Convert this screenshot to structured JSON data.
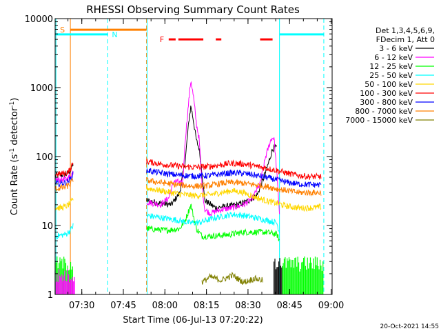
{
  "chart_data": {
    "type": "line",
    "title": "RHESSI Observing Summary Count Rates",
    "xlabel": "Start Time (06-Jul-13 07:20:22)",
    "ylabel_main": "Count Rate (s",
    "ylabel_sup1": "-1",
    "ylabel_mid": " detector",
    "ylabel_sup2": "-1",
    "ylabel_end": ")",
    "yscale": "log",
    "ylim": [
      1,
      10000
    ],
    "xlim_min": [
      0,
      100
    ],
    "y_ticks": [
      {
        "v": 1,
        "label": "1"
      },
      {
        "v": 10,
        "label": "10"
      },
      {
        "v": 100,
        "label": "100"
      },
      {
        "v": 1000,
        "label": "1000"
      },
      {
        "v": 10000,
        "label": "10000"
      }
    ],
    "x_ticks": [
      {
        "t": 9.63,
        "label": "07:30"
      },
      {
        "t": 24.63,
        "label": "07:45"
      },
      {
        "t": 39.63,
        "label": "08:00"
      },
      {
        "t": 54.63,
        "label": "08:15"
      },
      {
        "t": 69.63,
        "label": "08:30"
      },
      {
        "t": 84.63,
        "label": "08:45"
      },
      {
        "t": 99.63,
        "label": "09:00"
      }
    ],
    "legend_header": [
      "Det 1,3,4,5,6,9,",
      "FDecim 1, Att 0"
    ],
    "legend_position": "right",
    "series": [
      {
        "name": "3 - 6 keV",
        "color": "#000000",
        "segments": [
          [
            [
              0,
              53
            ],
            [
              2,
              54
            ],
            [
              4,
              55
            ],
            [
              5.5,
              62
            ],
            [
              6.5,
              78
            ]
          ],
          [
            [
              33,
              23
            ],
            [
              38,
              21
            ],
            [
              42,
              20
            ],
            [
              45,
              30
            ],
            [
              47,
              90
            ],
            [
              48,
              250
            ],
            [
              49,
              550
            ],
            [
              50,
              320
            ],
            [
              51,
              170
            ],
            [
              52,
              130
            ],
            [
              53,
              60
            ],
            [
              54,
              23
            ],
            [
              58,
              18
            ],
            [
              62,
              19
            ],
            [
              66,
              20
            ],
            [
              70,
              23
            ],
            [
              73,
              28
            ],
            [
              75,
              45
            ],
            [
              77,
              80
            ],
            [
              78.5,
              130
            ],
            [
              80,
              135
            ]
          ]
        ]
      },
      {
        "name": "6 - 12 keV",
        "color": "#ff00ff",
        "segments": [
          [
            [
              0,
              46
            ],
            [
              2,
              46
            ],
            [
              4,
              47
            ],
            [
              5.5,
              52
            ],
            [
              6.5,
              60
            ]
          ],
          [
            [
              33,
              22
            ],
            [
              38,
              20
            ],
            [
              41,
              25
            ],
            [
              43,
              45
            ],
            [
              46,
              40
            ],
            [
              47,
              180
            ],
            [
              48,
              500
            ],
            [
              49,
              1300
            ],
            [
              50,
              700
            ],
            [
              51,
              300
            ],
            [
              52,
              180
            ],
            [
              53,
              40
            ],
            [
              54,
              17
            ],
            [
              56,
              15
            ],
            [
              60,
              17
            ],
            [
              64,
              18
            ],
            [
              68,
              20
            ],
            [
              71,
              24
            ],
            [
              74,
              40
            ],
            [
              76,
              100
            ],
            [
              78,
              180
            ],
            [
              79,
              190
            ],
            [
              80,
              60
            ],
            [
              81,
              15
            ]
          ]
        ]
      },
      {
        "name": "12 - 25 keV",
        "color": "#00ff00",
        "segments": [
          [
            [
              33,
              9
            ],
            [
              40,
              8.5
            ],
            [
              45,
              9
            ],
            [
              47,
              12
            ],
            [
              49,
              20
            ],
            [
              51,
              9
            ],
            [
              53,
              7
            ],
            [
              56,
              7
            ],
            [
              60,
              7.2
            ],
            [
              64,
              7.5
            ],
            [
              68,
              8
            ],
            [
              72,
              8
            ],
            [
              76,
              8
            ],
            [
              80,
              7.5
            ],
            [
              81,
              6
            ]
          ]
        ]
      },
      {
        "name": "25 - 50 keV",
        "color": "#00ffff",
        "segments": [
          [
            [
              0,
              7
            ],
            [
              2,
              7.2
            ],
            [
              4,
              7.5
            ],
            [
              5.5,
              8.5
            ],
            [
              6.5,
              10
            ]
          ],
          [
            [
              33,
              14
            ],
            [
              38,
              13
            ],
            [
              44,
              12
            ],
            [
              48,
              11
            ],
            [
              52,
              11
            ],
            [
              58,
              13
            ],
            [
              64,
              14.5
            ],
            [
              68,
              14
            ],
            [
              72,
              13
            ],
            [
              76,
              12
            ],
            [
              80,
              11
            ],
            [
              81,
              8
            ]
          ]
        ]
      },
      {
        "name": "50 - 100 keV",
        "color": "#ffd700",
        "segments": [
          [
            [
              0,
              18
            ],
            [
              2,
              18
            ],
            [
              4,
              19
            ],
            [
              5.5,
              21
            ],
            [
              6.5,
              24
            ]
          ],
          [
            [
              33,
              35
            ],
            [
              38,
              32
            ],
            [
              44,
              29
            ],
            [
              50,
              27
            ],
            [
              56,
              28
            ],
            [
              60,
              30
            ],
            [
              64,
              32
            ],
            [
              68,
              30
            ],
            [
              72,
              26
            ],
            [
              76,
              23
            ],
            [
              80,
              21
            ],
            [
              84,
              19
            ],
            [
              88,
              18
            ],
            [
              92,
              18
            ],
            [
              96,
              18.5
            ]
          ]
        ]
      },
      {
        "name": "100 - 300 keV",
        "color": "#ff0000",
        "segments": [
          [
            [
              0,
              55
            ],
            [
              2,
              56
            ],
            [
              4,
              58
            ],
            [
              5.5,
              65
            ],
            [
              6.5,
              80
            ]
          ],
          [
            [
              33,
              85
            ],
            [
              38,
              78
            ],
            [
              44,
              73
            ],
            [
              50,
              70
            ],
            [
              56,
              72
            ],
            [
              60,
              76
            ],
            [
              64,
              80
            ],
            [
              68,
              78
            ],
            [
              72,
              73
            ],
            [
              76,
              68
            ],
            [
              80,
              63
            ],
            [
              84,
              57
            ],
            [
              88,
              53
            ],
            [
              92,
              51
            ],
            [
              96,
              51
            ]
          ]
        ]
      },
      {
        "name": "300 - 800 keV",
        "color": "#0000ff",
        "segments": [
          [
            [
              0,
              40
            ],
            [
              2,
              41
            ],
            [
              4,
              42
            ],
            [
              5.5,
              47
            ],
            [
              6.5,
              55
            ]
          ],
          [
            [
              33,
              63
            ],
            [
              38,
              58
            ],
            [
              44,
              54
            ],
            [
              50,
              52
            ],
            [
              56,
              53
            ],
            [
              60,
              56
            ],
            [
              64,
              58
            ],
            [
              68,
              57
            ],
            [
              72,
              54
            ],
            [
              76,
              50
            ],
            [
              80,
              46
            ],
            [
              84,
              42
            ],
            [
              88,
              40
            ],
            [
              92,
              39
            ],
            [
              96,
              39
            ]
          ]
        ]
      },
      {
        "name": "800 - 7000 keV",
        "color": "#ff8000",
        "segments": [
          [
            [
              0,
              34
            ],
            [
              2,
              35
            ],
            [
              4,
              36
            ],
            [
              5.5,
              40
            ],
            [
              6.5,
              47
            ]
          ],
          [
            [
              33,
              45
            ],
            [
              38,
              42
            ],
            [
              44,
              39
            ],
            [
              50,
              37
            ],
            [
              56,
              38
            ],
            [
              60,
              41
            ],
            [
              64,
              42
            ],
            [
              68,
              41
            ],
            [
              72,
              39
            ],
            [
              76,
              37
            ],
            [
              80,
              34
            ],
            [
              84,
              32
            ],
            [
              88,
              30
            ],
            [
              92,
              30
            ],
            [
              96,
              30
            ]
          ]
        ]
      },
      {
        "name": "7000 - 15000 keV",
        "color": "#808000",
        "segments": [
          [
            [
              53,
              1.5
            ],
            [
              56,
              1.8
            ],
            [
              60,
              1.6
            ],
            [
              64,
              1.9
            ],
            [
              68,
              1.5
            ],
            [
              72,
              1.7
            ],
            [
              75,
              1.6
            ]
          ]
        ]
      }
    ],
    "low_band_bars": [
      {
        "color": "#00ff00",
        "t0": 0,
        "t1": 6.5,
        "value": 3
      },
      {
        "color": "#00ff00",
        "t0": 82,
        "t1": 97,
        "value": 3
      },
      {
        "color": "#000000",
        "t0": 79,
        "t1": 82,
        "value": 3
      },
      {
        "color": "#ff00ff",
        "t0": 0,
        "t1": 7,
        "value": 2
      }
    ],
    "flags": {
      "saa": {
        "label": "S",
        "color": "#ff8000",
        "t0": 5.5,
        "t1": 33,
        "value": 6900
      },
      "night": {
        "label": "N",
        "color": "#00ffff",
        "segments": [
          [
            0,
            19
          ],
          [
            81,
            97
          ]
        ],
        "value": 5900
      },
      "flare": {
        "label": "F",
        "color": "#ff0000",
        "segments": [
          [
            41,
            43.5
          ],
          [
            44.5,
            53.5
          ],
          [
            58,
            60
          ],
          [
            74,
            78.5
          ]
        ],
        "value": 5000
      }
    },
    "vertical_markers": [
      {
        "t": 0.3,
        "color": "#00ffff",
        "style": "solid"
      },
      {
        "t": 5.5,
        "color": "#ff8000",
        "style": "solid"
      },
      {
        "t": 19,
        "color": "#00ffff",
        "style": "dashed"
      },
      {
        "t": 33,
        "color": "#ff8000",
        "style": "dashed"
      },
      {
        "t": 33.2,
        "color": "#00ffff",
        "style": "solid"
      },
      {
        "t": 81,
        "color": "#00ffff",
        "style": "solid"
      },
      {
        "t": 97,
        "color": "#00ffff",
        "style": "dashed"
      }
    ],
    "timestamp": "20-Oct-2021 14:55"
  }
}
